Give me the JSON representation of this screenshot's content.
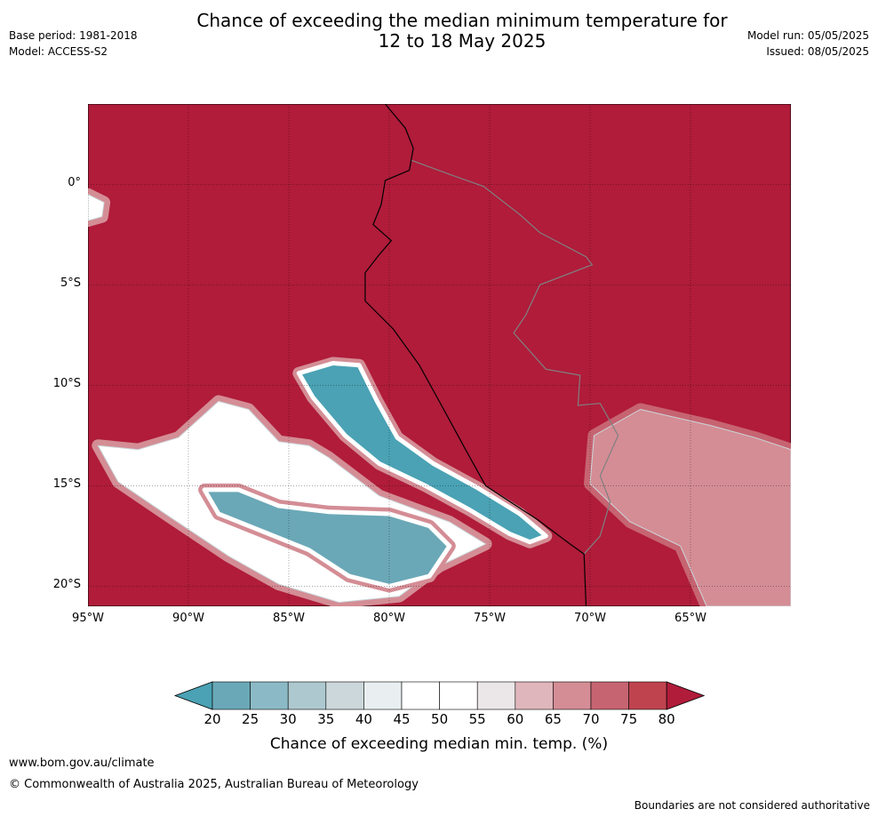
{
  "header": {
    "title_line1": "Chance of exceeding the median minimum temperature for",
    "title_line2": "12 to 18 May 2025",
    "base_period": "Base period: 1981-2018",
    "model": "Model: ACCESS-S2",
    "model_run": "Model run: 05/05/2025",
    "issued": "Issued: 08/05/2025"
  },
  "map": {
    "lon_range": [
      -95,
      -60
    ],
    "lat_range": [
      -21,
      4
    ],
    "lat_ticks": [
      {
        "value": 0,
        "label": "0°"
      },
      {
        "value": -5,
        "label": "5°S"
      },
      {
        "value": -10,
        "label": "10°S"
      },
      {
        "value": -15,
        "label": "15°S"
      },
      {
        "value": -20,
        "label": "20°S"
      }
    ],
    "lon_ticks": [
      {
        "value": -95,
        "label": "95°W"
      },
      {
        "value": -90,
        "label": "90°W"
      },
      {
        "value": -85,
        "label": "85°W"
      },
      {
        "value": -80,
        "label": "80°W"
      },
      {
        "value": -75,
        "label": "75°W"
      },
      {
        "value": -70,
        "label": "70°W"
      },
      {
        "value": -65,
        "label": "65°W"
      }
    ],
    "background_class": ">80",
    "colors": {
      "ocean_high": "#b01c3a",
      "land_border": "#808080",
      "coastline": "#000000"
    },
    "regions": [
      {
        "name": "offshore-cool-anomaly",
        "value": "25-30",
        "lonlat": [
          [
            -84.5,
            -9.4
          ],
          [
            -83.8,
            -10.6
          ],
          [
            -82.2,
            -12.5
          ],
          [
            -80.5,
            -13.9
          ],
          [
            -78.2,
            -15.0
          ],
          [
            -76.0,
            -16.2
          ],
          [
            -74.0,
            -17.4
          ],
          [
            -73.0,
            -17.8
          ],
          [
            -72.2,
            -17.5
          ],
          [
            -73.5,
            -16.4
          ],
          [
            -75.6,
            -15.1
          ],
          [
            -77.8,
            -13.9
          ],
          [
            -79.6,
            -12.6
          ],
          [
            -80.6,
            -10.8
          ],
          [
            -81.5,
            -9.0
          ],
          [
            -82.8,
            -8.9
          ]
        ]
      },
      {
        "name": "southwest-cool-patch",
        "value": "30",
        "lonlat": [
          [
            -87.5,
            -15.2
          ],
          [
            -85.5,
            -16.0
          ],
          [
            -83.0,
            -16.3
          ],
          [
            -80.0,
            -16.4
          ],
          [
            -78.0,
            -17.0
          ],
          [
            -77.0,
            -18.0
          ],
          [
            -78.0,
            -19.5
          ],
          [
            -80.0,
            -20.0
          ],
          [
            -82.0,
            -19.5
          ],
          [
            -84.0,
            -18.2
          ],
          [
            -86.0,
            -17.4
          ],
          [
            -88.5,
            -16.4
          ],
          [
            -89.2,
            -15.2
          ]
        ]
      },
      {
        "name": "mid-white-band",
        "value": "45-55",
        "lonlat": [
          [
            -94.5,
            -13.0
          ],
          [
            -92.5,
            -13.2
          ],
          [
            -90.5,
            -12.6
          ],
          [
            -88.5,
            -10.8
          ],
          [
            -87.0,
            -11.2
          ],
          [
            -85.5,
            -12.8
          ],
          [
            -84.0,
            -13.0
          ],
          [
            -83.0,
            -13.6
          ],
          [
            -80.5,
            -15.5
          ],
          [
            -77.0,
            -16.8
          ],
          [
            -75.2,
            -17.9
          ],
          [
            -77.5,
            -19.0
          ],
          [
            -79.5,
            -20.5
          ],
          [
            -82.5,
            -20.8
          ],
          [
            -85.5,
            -19.9
          ],
          [
            -88.0,
            -18.5
          ],
          [
            -91.0,
            -16.5
          ],
          [
            -93.5,
            -14.8
          ]
        ]
      },
      {
        "name": "north-white-blob",
        "value": "50",
        "lonlat": [
          [
            -95,
            -0.5
          ],
          [
            -94.2,
            -0.9
          ],
          [
            -94.3,
            -1.6
          ],
          [
            -95,
            -1.8
          ]
        ]
      },
      {
        "name": "inland-pale-region",
        "value": "55-70",
        "lonlat": [
          [
            -69.8,
            -12.5
          ],
          [
            -67.5,
            -11.2
          ],
          [
            -64.0,
            -12.0
          ],
          [
            -61.8,
            -12.6
          ],
          [
            -60,
            -13.2
          ],
          [
            -60,
            -21
          ],
          [
            -64.2,
            -21
          ],
          [
            -65.5,
            -18.0
          ],
          [
            -68.0,
            -16.8
          ],
          [
            -70.0,
            -14.9
          ]
        ]
      }
    ],
    "coastline_lonlat": [
      [
        -80.2,
        4
      ],
      [
        -79.2,
        2.8
      ],
      [
        -78.8,
        1.8
      ],
      [
        -79.0,
        0.7
      ],
      [
        -80.2,
        0.2
      ],
      [
        -80.4,
        -1.0
      ],
      [
        -80.8,
        -2.0
      ],
      [
        -79.9,
        -2.8
      ],
      [
        -80.5,
        -3.5
      ],
      [
        -81.2,
        -4.4
      ],
      [
        -81.2,
        -5.8
      ],
      [
        -79.8,
        -7.2
      ],
      [
        -78.5,
        -9.0
      ],
      [
        -77.4,
        -11.0
      ],
      [
        -76.2,
        -13.2
      ],
      [
        -75.2,
        -15.0
      ],
      [
        -72.6,
        -16.7
      ],
      [
        -71.0,
        -17.9
      ],
      [
        -70.3,
        -18.4
      ],
      [
        -70.2,
        -21
      ]
    ],
    "border_lonlat": [
      [
        -78.9,
        1.2
      ],
      [
        -77.0,
        0.5
      ],
      [
        -75.3,
        -0.1
      ],
      [
        -73.5,
        -1.5
      ],
      [
        -72.5,
        -2.4
      ],
      [
        -70.2,
        -3.6
      ],
      [
        -69.9,
        -4.0
      ],
      [
        -72.5,
        -5.0
      ],
      [
        -73.2,
        -6.5
      ],
      [
        -73.8,
        -7.4
      ],
      [
        -72.2,
        -9.2
      ],
      [
        -70.5,
        -9.5
      ],
      [
        -70.6,
        -11.0
      ],
      [
        -69.5,
        -10.9
      ],
      [
        -68.6,
        -12.5
      ],
      [
        -69.5,
        -14.5
      ],
      [
        -69.0,
        -15.8
      ],
      [
        -69.5,
        -17.5
      ],
      [
        -70.3,
        -18.4
      ]
    ]
  },
  "colorbar": {
    "levels": [
      "20",
      "25",
      "30",
      "35",
      "40",
      "45",
      "50",
      "55",
      "60",
      "65",
      "70",
      "75",
      "80"
    ],
    "colors": [
      "#6aa8b7",
      "#8bbac6",
      "#adc8cf",
      "#cbd7da",
      "#e9eff1",
      "#ffffff",
      "#ffffff",
      "#ebe6e7",
      "#dfb6bb",
      "#d48d95",
      "#c76471",
      "#be434f"
    ],
    "under_color": "#4aa2b4",
    "over_color": "#b01c3a",
    "label": "Chance of exceeding median min. temp. (%)"
  },
  "footer": {
    "website": "www.bom.gov.au/climate",
    "copyright": "© Commonwealth of Australia 2025, Australian Bureau of Meteorology",
    "disclaimer": "Boundaries are not considered authoritative"
  }
}
